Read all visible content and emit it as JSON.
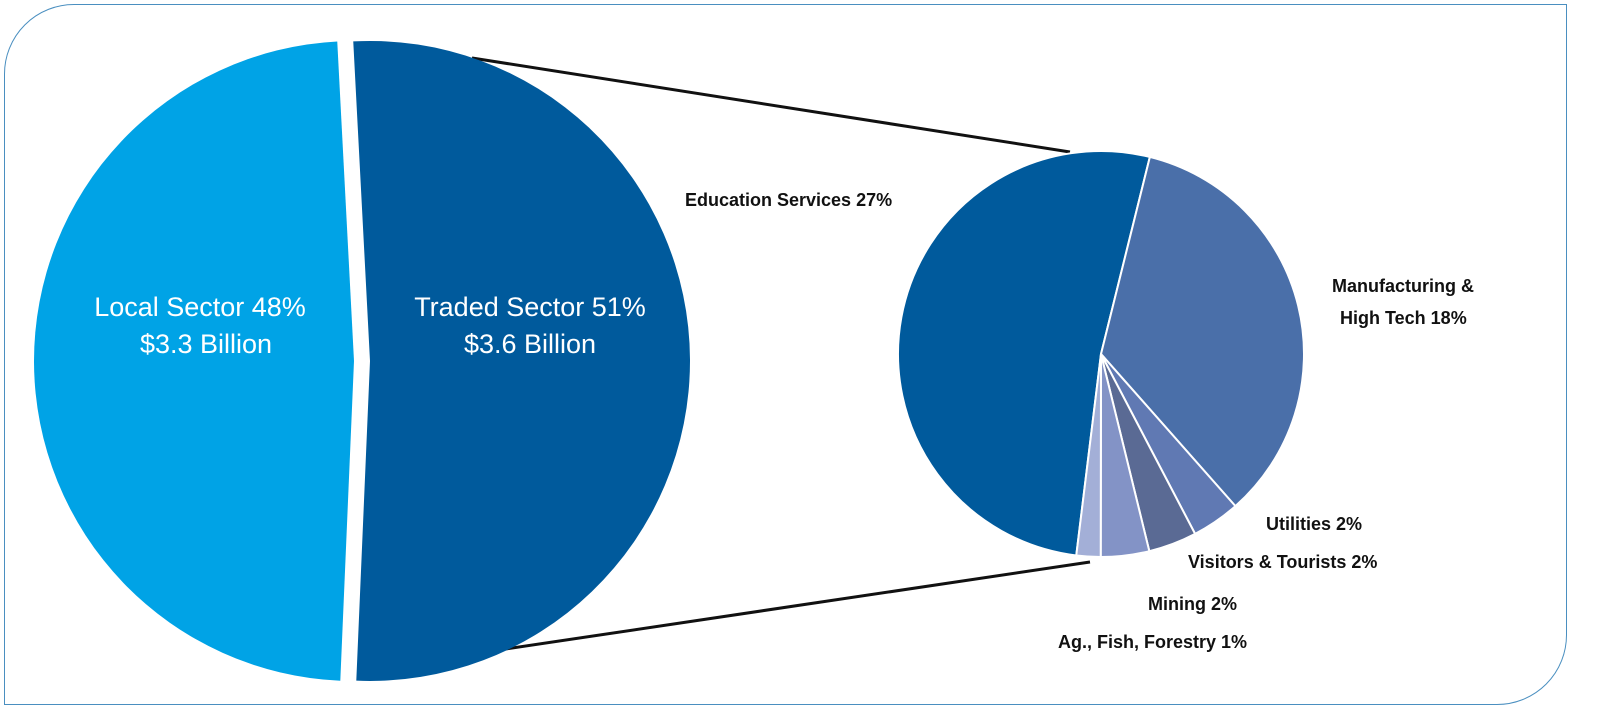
{
  "chart_data": [
    {
      "type": "pie",
      "slices": [
        {
          "name": "Traded Sector",
          "label_line1": "Traded Sector 51%",
          "label_line2": "$3.6 Billion",
          "value": 51,
          "color": "#005a9c"
        },
        {
          "name": "Local Sector",
          "label_line1": "Local Sector 48%",
          "label_line2": "$3.3 Billion",
          "value": 48,
          "color": "#00a3e6"
        }
      ]
    },
    {
      "type": "pie",
      "breakdown_of": "Traded Sector",
      "slices": [
        {
          "name": "Education Services",
          "label": "Education Services 27%",
          "value": 27,
          "color": "#005a9c"
        },
        {
          "name": "Manufacturing & High Tech",
          "label_line1": "Manufacturing &",
          "label_line2": "High Tech 18%",
          "value": 18,
          "color": "#4a6fa9"
        },
        {
          "name": "Utilities",
          "label": "Utilities 2%",
          "value": 2,
          "color": "#6079b3"
        },
        {
          "name": "Visitors & Tourists",
          "label": "Visitors & Tourists 2%",
          "value": 2,
          "color": "#5a6a94"
        },
        {
          "name": "Mining",
          "label": "Mining 2%",
          "value": 2,
          "color": "#8393c6"
        },
        {
          "name": "Ag., Fish, Forestry",
          "label": "Ag., Fish, Forestry 1%",
          "value": 1,
          "color": "#a3afd7"
        }
      ]
    }
  ]
}
